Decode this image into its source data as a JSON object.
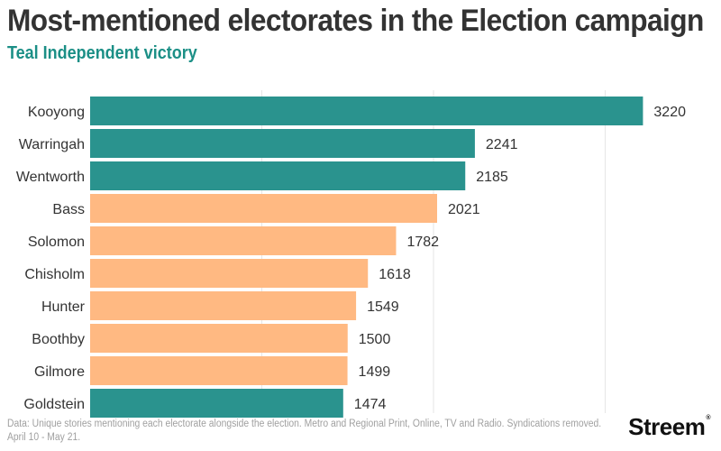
{
  "chart_data": {
    "type": "bar",
    "orientation": "horizontal",
    "title": "Most-mentioned electorates in the Election campaign",
    "subtitle": "Teal Independent victory",
    "xlabel": "",
    "ylabel": "",
    "xlim": [
      0,
      3600
    ],
    "grid": true,
    "gridlines": [
      1000,
      2000,
      3000
    ],
    "categories": [
      "Kooyong",
      "Warringah",
      "Wentworth",
      "Bass",
      "Solomon",
      "Chisholm",
      "Hunter",
      "Boothby",
      "Gilmore",
      "Goldstein"
    ],
    "values": [
      3220,
      2241,
      2185,
      2021,
      1782,
      1618,
      1549,
      1500,
      1499,
      1474
    ],
    "groups": [
      "teal",
      "teal",
      "teal",
      "other",
      "other",
      "other",
      "other",
      "other",
      "other",
      "teal"
    ],
    "colors": {
      "teal": "#26918c",
      "other": "#ffb880"
    },
    "data_labels": [
      "3220",
      "2241",
      "2185",
      "2021",
      "1782",
      "1618",
      "1549",
      "1500",
      "1499",
      "1474"
    ]
  },
  "footer": {
    "line1": "Data: Unique stories mentioning each electorate alongside the election. Metro and Regional Print, Online, TV and Radio. Syndications removed.",
    "line2": "April 10 - May 21."
  },
  "brand": {
    "name": "Streem",
    "mark": "®"
  }
}
